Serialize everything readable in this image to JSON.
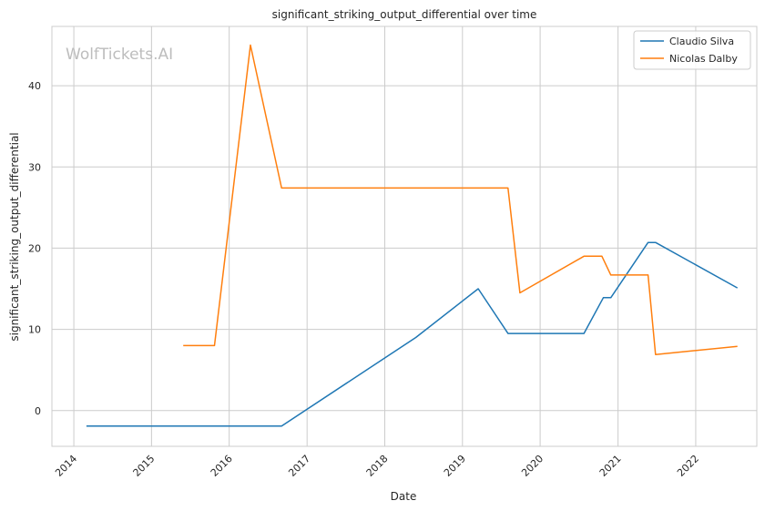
{
  "chart_data": {
    "type": "line",
    "title": "significant_striking_output_differential over time",
    "xlabel": "Date",
    "ylabel": "significant_striking_output_differential",
    "watermark": "WolfTickets.AI",
    "x_ticks": [
      "2014",
      "2015",
      "2016",
      "2017",
      "2018",
      "2019",
      "2020",
      "2021",
      "2022"
    ],
    "y_ticks": [
      0,
      10,
      20,
      30,
      40
    ],
    "xlim": [
      "2013-09-20",
      "2022-10-15"
    ],
    "ylim": [
      -4.4,
      47.3
    ],
    "grid": true,
    "legend_position": "top-right",
    "series": [
      {
        "name": "Claudio Silva",
        "color": "#1f77b4",
        "points": [
          [
            "2014-03-01",
            -1.9
          ],
          [
            "2016-09-03",
            -1.9
          ],
          [
            "2018-05-27",
            9.0
          ],
          [
            "2019-03-16",
            15.0
          ],
          [
            "2019-08-03",
            9.5
          ],
          [
            "2020-07-25",
            9.5
          ],
          [
            "2020-10-24",
            13.9
          ],
          [
            "2020-11-28",
            13.9
          ],
          [
            "2021-05-22",
            20.7
          ],
          [
            "2021-06-26",
            20.7
          ],
          [
            "2022-07-16",
            15.1
          ]
        ]
      },
      {
        "name": "Nicolas Dalby",
        "color": "#ff7f0e",
        "points": [
          [
            "2015-05-30",
            8.0
          ],
          [
            "2015-10-24",
            8.0
          ],
          [
            "2016-04-10",
            45.0
          ],
          [
            "2016-09-03",
            27.4
          ],
          [
            "2019-08-03",
            27.4
          ],
          [
            "2019-09-28",
            14.5
          ],
          [
            "2020-07-25",
            19.0
          ],
          [
            "2020-10-17",
            19.0
          ],
          [
            "2020-11-28",
            16.7
          ],
          [
            "2021-05-22",
            16.7
          ],
          [
            "2021-06-26",
            6.9
          ],
          [
            "2022-07-16",
            7.9
          ]
        ]
      }
    ]
  }
}
